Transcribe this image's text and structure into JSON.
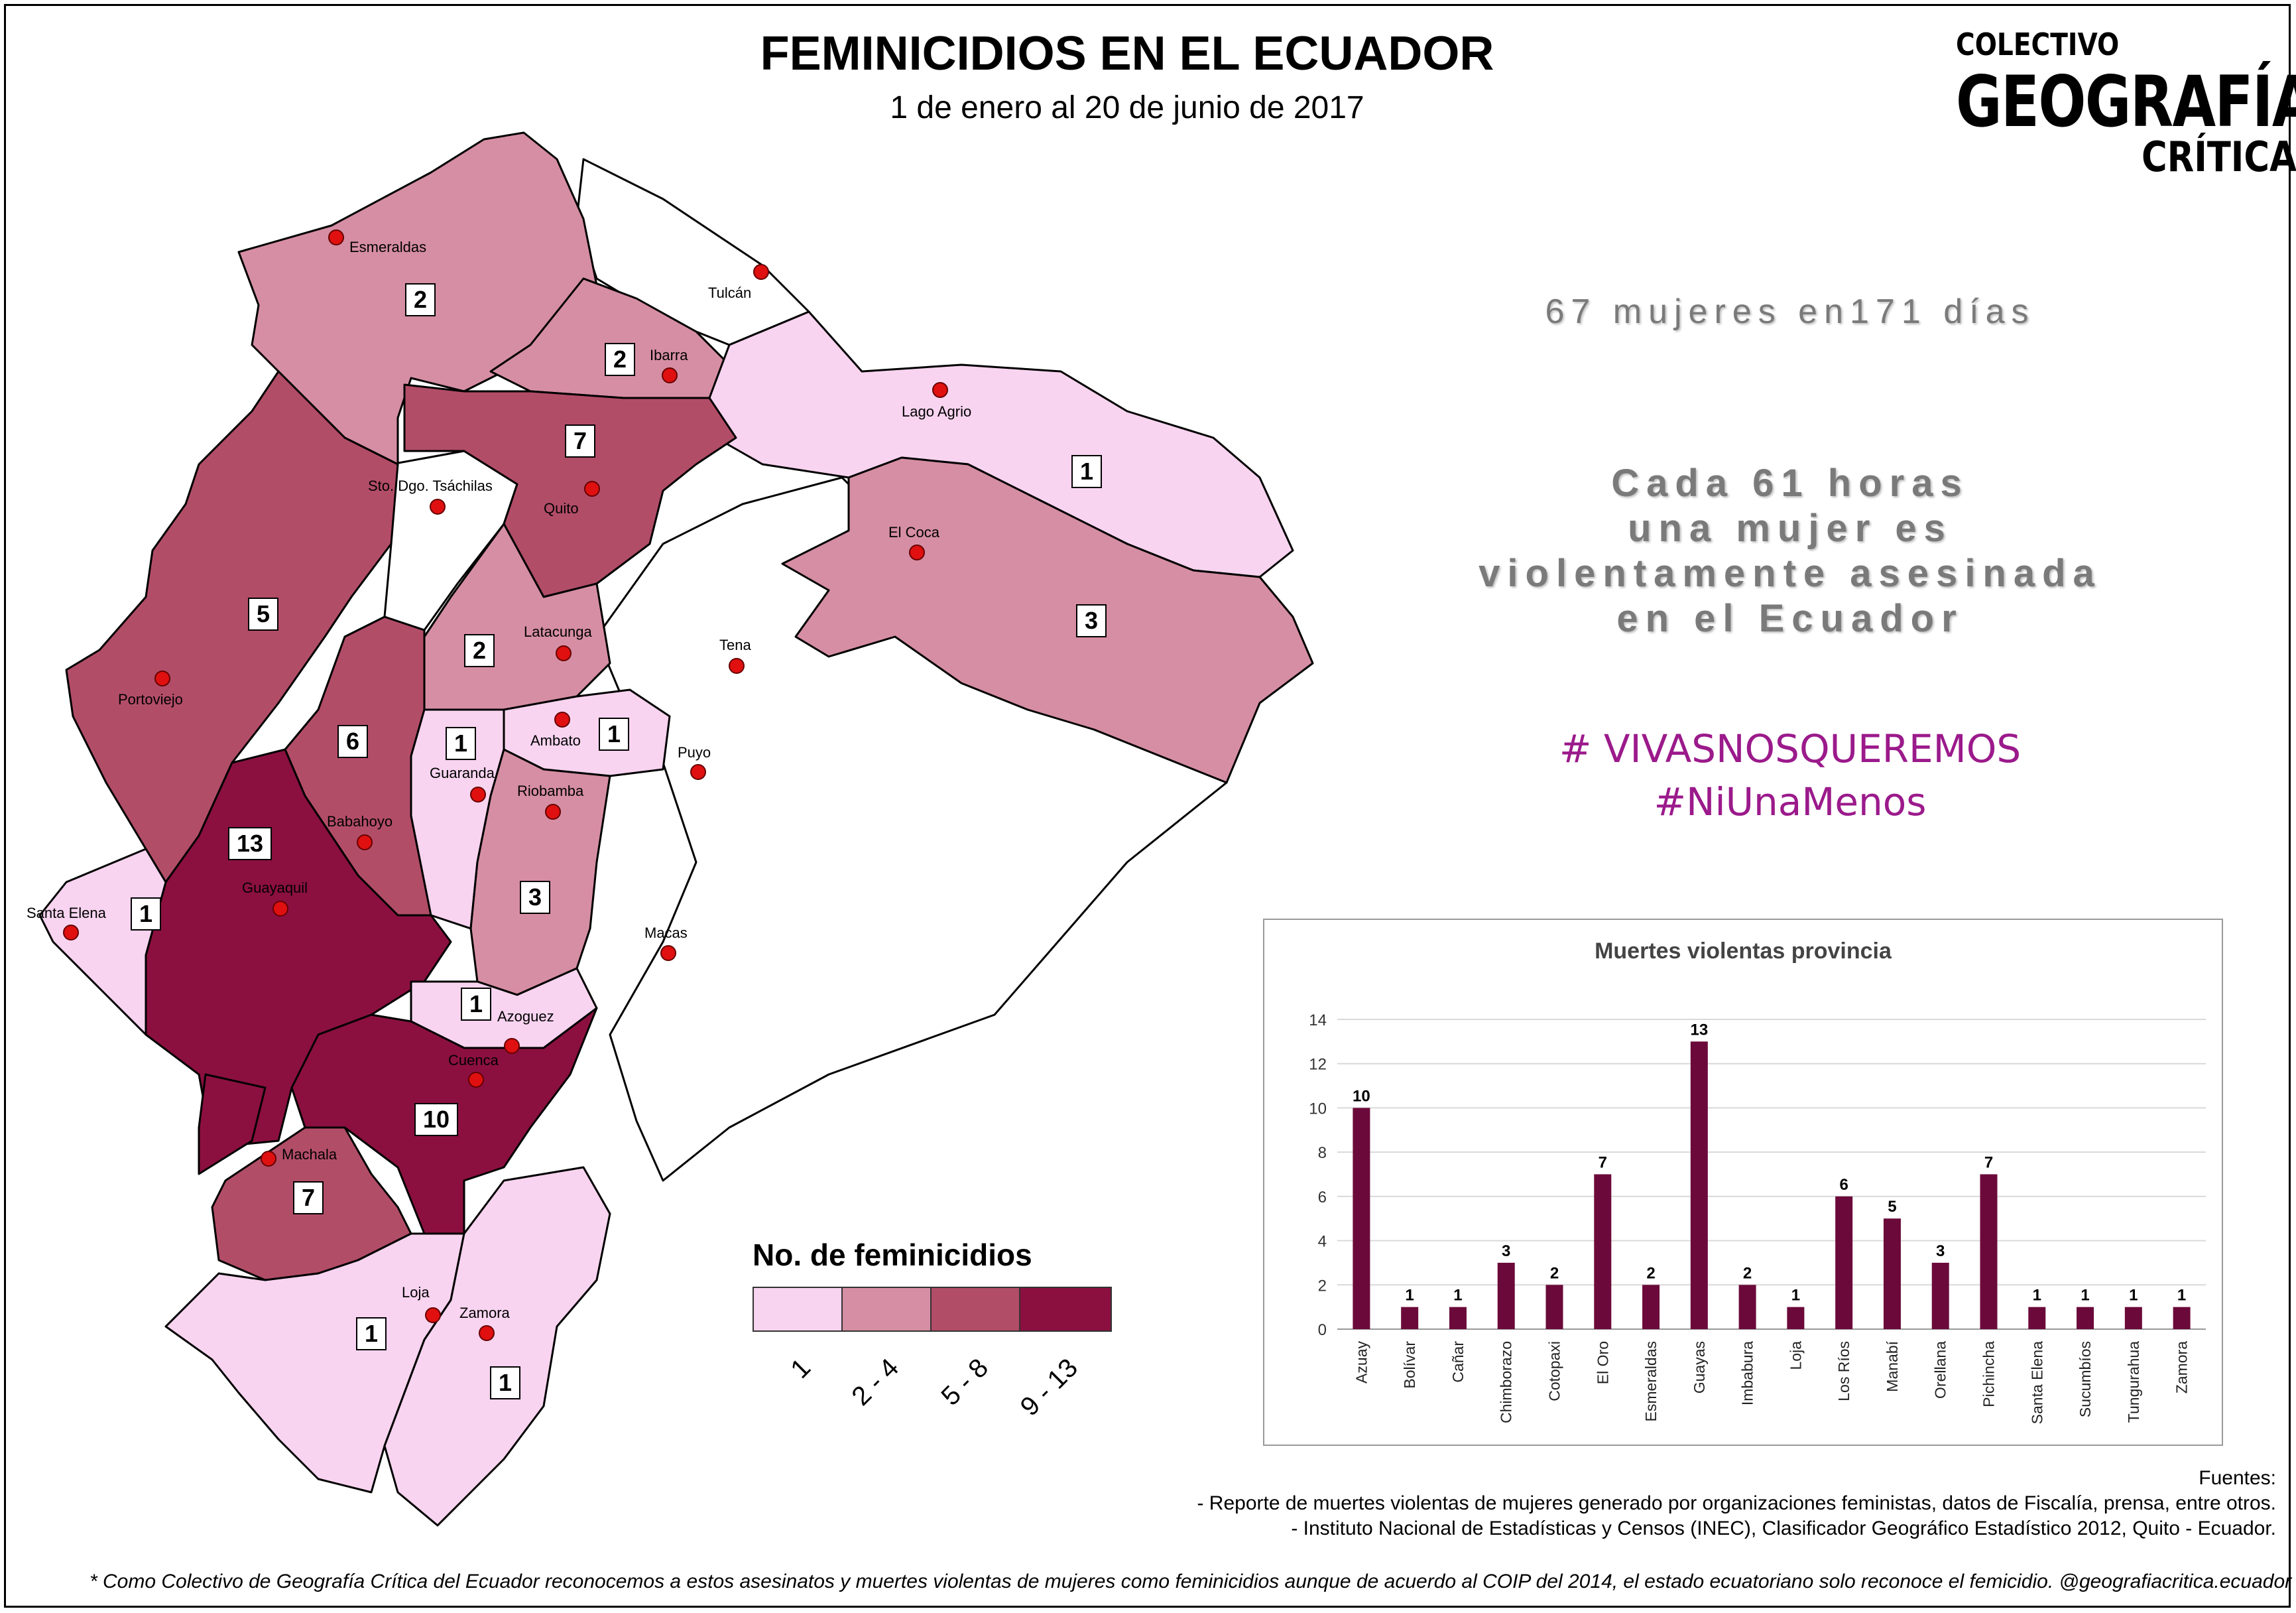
{
  "header": {
    "title": "FEMINICIDIOS EN EL ECUADOR",
    "subtitle": "1 de enero al 20 de junio de 2017"
  },
  "logo": {
    "line1": "COLECTIVO",
    "line2": "GEOGRAFÍA",
    "line3": "CRÍTICA"
  },
  "stats": {
    "line1": "67 mujeres en171 días",
    "line2": [
      "Cada 61 horas",
      "una mujer es",
      "violentamente asesinada",
      "en el Ecuador"
    ]
  },
  "hashtags": [
    "# VIVASNOSQUEREMOS",
    "#NiUnaMenos"
  ],
  "colors": {
    "c1": "#f8d4f0",
    "c2": "#d68ea4",
    "c3": "#b24d68",
    "c4": "#8b1040",
    "bar": "#6b0a3a",
    "hashtag": "#9b1a8b"
  },
  "map": {
    "cities": [
      "Esmeraldas",
      "Tulcán",
      "Ibarra",
      "Lago Agrio",
      "Sto. Dgo. Tsáchilas",
      "Quito",
      "El Coca",
      "Latacunga",
      "Tena",
      "Portoviejo",
      "Ambato",
      "Puyo",
      "Guaranda",
      "Riobamba",
      "Babahoyo",
      "Guayaquil",
      "Santa Elena",
      "Macas",
      "Azoguez",
      "Cuenca",
      "Machala",
      "Loja",
      "Zamora"
    ],
    "counts": [
      "2",
      "2",
      "7",
      "1",
      "3",
      "5",
      "2",
      "1",
      "1",
      "6",
      "13",
      "1",
      "3",
      "1",
      "10",
      "7",
      "1",
      "1"
    ]
  },
  "legend": {
    "title": "No. de feminicidios",
    "classes": [
      "1",
      "2 - 4",
      "5 - 8",
      "9 - 13"
    ]
  },
  "chart_data": {
    "type": "bar",
    "title": "Muertes violentas  provincia",
    "categories": [
      "Azuay",
      "Bolívar",
      "Cañar",
      "Chimborazo",
      "Cotopaxi",
      "El Oro",
      "Esmeraldas",
      "Guayas",
      "Imbabura",
      "Loja",
      "Los Ríos",
      "Manabí",
      "Orellana",
      "Pichincha",
      "Santa Elena",
      "Sucumbíos",
      "Tungurahua",
      "Zamora"
    ],
    "values": [
      10,
      1,
      1,
      3,
      2,
      7,
      2,
      13,
      2,
      1,
      6,
      5,
      3,
      7,
      1,
      1,
      1,
      1
    ],
    "ylim": [
      0,
      14
    ],
    "yticks": [
      0,
      2,
      4,
      6,
      8,
      10,
      12,
      14
    ],
    "grid": true
  },
  "sources": {
    "heading": "Fuentes:",
    "items": [
      "- Reporte de muertes violentas de mujeres generado por  organizaciones feministas, datos de Fiscalía, prensa, entre otros.",
      "- Instituto Nacional de Estadísticas y Censos (INEC), Clasificador Geográfico Estadístico 2012, Quito - Ecuador."
    ]
  },
  "footnote": "* Como Colectivo de Geografía Crítica del Ecuador reconocemos a estos asesinatos y muertes violentas de mujeres como feminicidios aunque de acuerdo al COIP del 2014, el estado ecuatoriano solo reconoce el femicidio. @geografiacritica.ecuador"
}
